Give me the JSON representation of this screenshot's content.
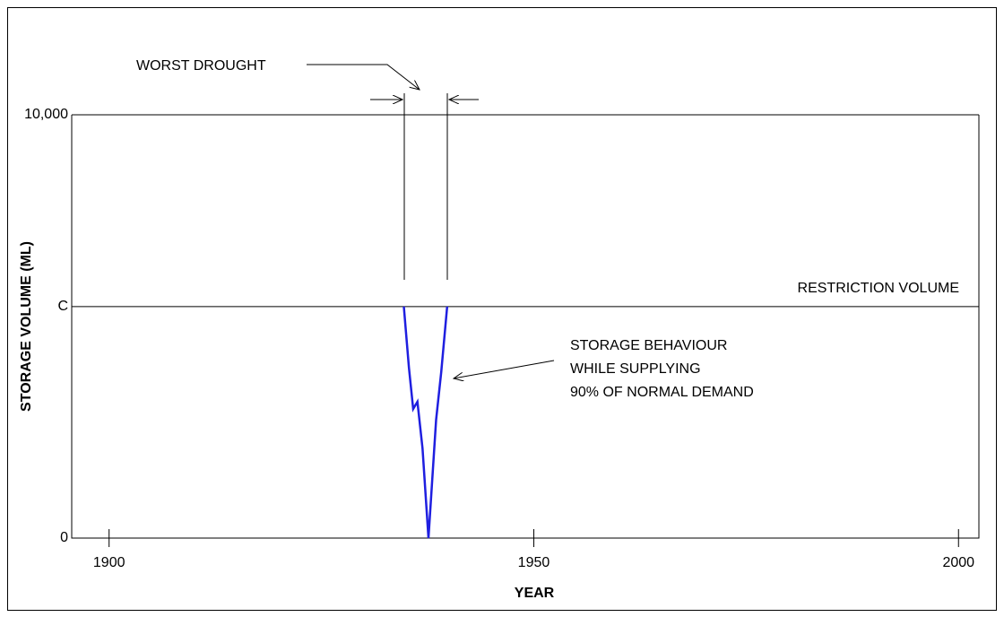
{
  "chart_data": {
    "type": "line",
    "xlabel": "YEAR",
    "ylabel": "STORAGE VOLUME (ML)",
    "x": [
      1934.7,
      1935.3,
      1935.8,
      1936.3,
      1936.9,
      1937.6,
      1938.5,
      1939.1,
      1939.8
    ],
    "series": [
      {
        "name": "STORAGE BEHAVIOUR WHILE SUPPLYING 90% OF NORMAL DEMAND",
        "color": "#1f1fe0",
        "values": [
          5470,
          4025,
          3051,
          3220,
          2119,
          0,
          2797,
          3919,
          5470
        ]
      }
    ],
    "xlim": [
      1895.6,
      2002.4
    ],
    "xticks": [
      1900,
      1950,
      2000
    ],
    "ylim": [
      0,
      10000
    ],
    "yticks": [
      0,
      {
        "value": 5470,
        "label": "C"
      },
      {
        "value": 10000,
        "label": "10,000"
      }
    ],
    "annotations": [
      "WORST DROUGHT",
      "RESTRICTION VOLUME",
      "STORAGE BEHAVIOUR",
      "WHILE SUPPLYING",
      "90% OF NORMAL DEMAND"
    ]
  }
}
